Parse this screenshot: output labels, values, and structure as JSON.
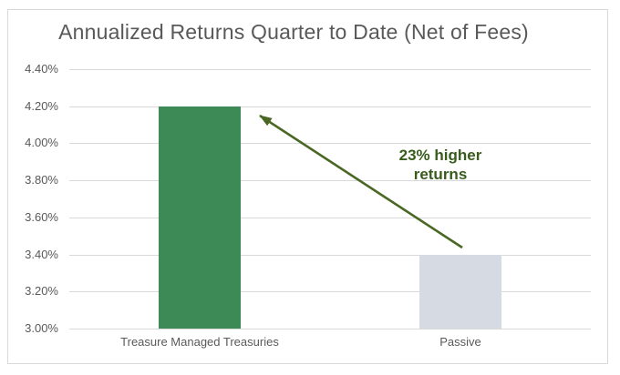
{
  "chart_data": {
    "type": "bar",
    "title": "Annualized Returns Quarter to Date (Net of Fees)",
    "categories": [
      "Treasure Managed Treasuries",
      "Passive"
    ],
    "values": [
      4.2,
      3.4
    ],
    "value_unit": "%",
    "ylim": [
      3.0,
      4.4
    ],
    "ytick_step": 0.2,
    "ytick_labels": [
      "3.00%",
      "3.20%",
      "3.40%",
      "3.60%",
      "3.80%",
      "4.00%",
      "4.20%",
      "4.40%"
    ],
    "grid": true,
    "legend_position": "none",
    "bar_colors": [
      "#3E8A57",
      "#D6DAE2"
    ],
    "annotation": {
      "line1": "23% higher",
      "line2": "returns",
      "text_color": "#375C1B",
      "arrow_color": "#4A6824",
      "arrow_points_from": "Passive",
      "arrow_points_to": "Treasure Managed Treasuries"
    }
  },
  "colors": {
    "background": "#FFFFFF",
    "border": "#D9D9D9",
    "gridline": "#D9D9D9",
    "title_text": "#595959",
    "axis_text": "#595959"
  }
}
